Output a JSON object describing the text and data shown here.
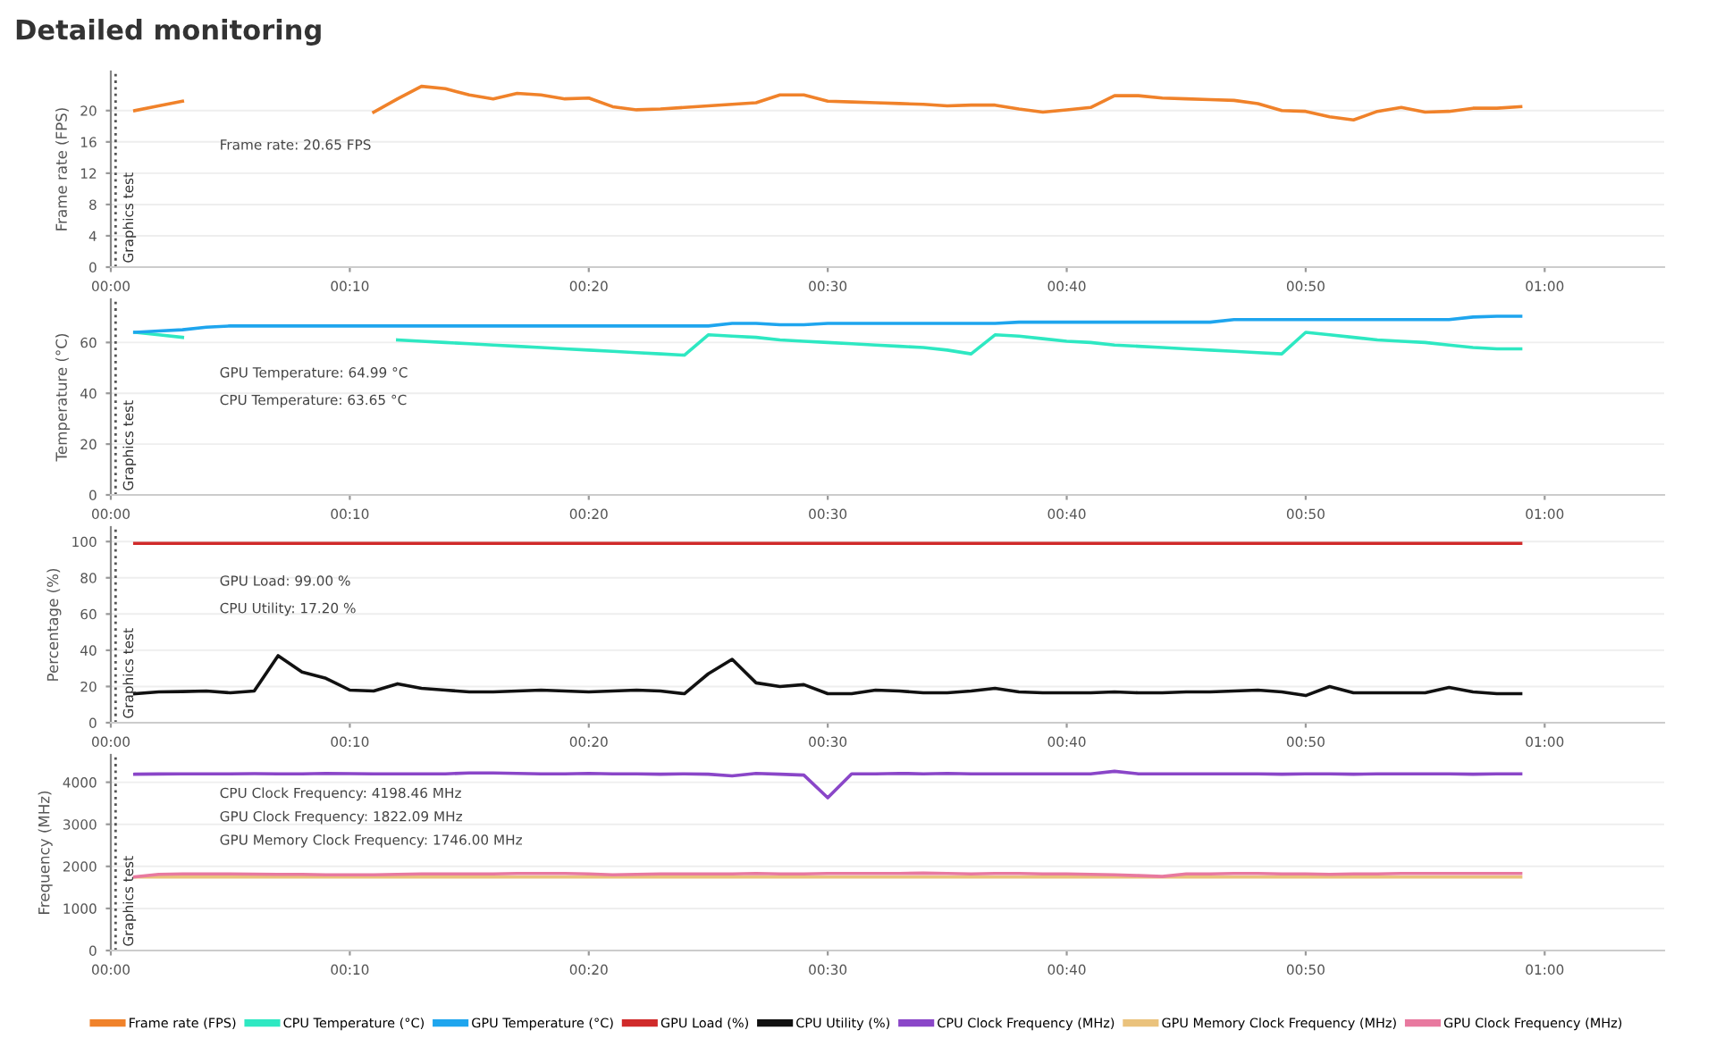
{
  "chart_data": [
    {
      "type": "line",
      "title": "Detailed monitoring",
      "ylabel": "Frame rate (FPS)",
      "x": [
        1,
        2,
        3,
        4,
        5,
        6,
        7,
        8,
        9,
        10,
        11,
        12,
        13,
        14,
        15,
        16,
        17,
        18,
        19,
        20,
        21,
        22,
        23,
        24,
        25,
        26,
        27,
        28,
        29,
        30,
        31,
        32,
        33,
        34,
        35,
        36,
        37,
        38,
        39,
        40,
        41,
        42,
        43,
        44,
        45,
        46,
        47,
        48,
        49,
        50,
        51,
        52,
        53,
        54,
        55,
        56,
        57,
        58,
        59
      ],
      "series": [
        {
          "name": "Frame rate (FPS)",
          "color": "#f0822a",
          "values": [
            20,
            20.6,
            21.2,
            null,
            null,
            null,
            null,
            null,
            null,
            null,
            19.8,
            21.5,
            23.1,
            22.8,
            22,
            21.5,
            22.2,
            22,
            21.5,
            21.6,
            20.5,
            20.1,
            20.2,
            20.4,
            20.6,
            20.8,
            21,
            22,
            22,
            21.2,
            21.1,
            21,
            20.9,
            20.8,
            20.6,
            20.7,
            20.7,
            20.2,
            19.8,
            20.1,
            20.4,
            21.9,
            21.9,
            21.6,
            21.5,
            21.4,
            21.3,
            20.9,
            20,
            19.9,
            19.2,
            18.8,
            19.9,
            20.4,
            19.8,
            19.9,
            20.3,
            20.3,
            20.5
          ]
        }
      ],
      "annotations": [
        "Frame rate: 20.65 FPS"
      ],
      "ref_lines": [
        {
          "axis": "x",
          "value": 0.2,
          "label": "Graphics test",
          "line_style": "dotted"
        }
      ],
      "xlim": [
        0,
        65
      ],
      "xticks": [
        {
          "value": 0,
          "label": "00:00"
        },
        {
          "value": 10,
          "label": "00:10"
        },
        {
          "value": 20,
          "label": "00:20"
        },
        {
          "value": 30,
          "label": "00:30"
        },
        {
          "value": 40,
          "label": "00:40"
        },
        {
          "value": 50,
          "label": "00:50"
        },
        {
          "value": 60,
          "label": "01:00"
        }
      ],
      "ylim": [
        0,
        25
      ],
      "yticks": [
        0,
        4,
        8,
        12,
        16,
        20
      ],
      "grid": "y",
      "legend": "bottom",
      "marker": "none",
      "line_style": "solid"
    },
    {
      "type": "line",
      "ylabel": "Temperature (°C)",
      "x": [
        1,
        2,
        3,
        4,
        5,
        6,
        7,
        8,
        9,
        10,
        11,
        12,
        13,
        14,
        15,
        16,
        17,
        18,
        19,
        20,
        21,
        22,
        23,
        24,
        25,
        26,
        27,
        28,
        29,
        30,
        31,
        32,
        33,
        34,
        35,
        36,
        37,
        38,
        39,
        40,
        41,
        42,
        43,
        44,
        45,
        46,
        47,
        48,
        49,
        50,
        51,
        52,
        53,
        54,
        55,
        56,
        57,
        58,
        59
      ],
      "series": [
        {
          "name": "CPU Temperature (°C)",
          "color": "#2ee8c2",
          "values": [
            64,
            63,
            62,
            null,
            null,
            null,
            null,
            null,
            null,
            null,
            null,
            61,
            60.5,
            60,
            59.5,
            59,
            58.5,
            58,
            57.5,
            57,
            56.5,
            56,
            55.5,
            55,
            63,
            62.5,
            62,
            61,
            60.5,
            60,
            59.5,
            59,
            58.5,
            58,
            57,
            55.5,
            63,
            62.5,
            61.5,
            60.5,
            60,
            59,
            58.5,
            58,
            57.5,
            57,
            56.5,
            56,
            55.5,
            64,
            63,
            62,
            61,
            60.5,
            60,
            59,
            58,
            57.5,
            57.5
          ]
        },
        {
          "name": "GPU Temperature (°C)",
          "color": "#1ea5ee",
          "values": [
            64,
            64.5,
            65,
            66,
            66.5,
            66.5,
            66.5,
            66.5,
            66.5,
            66.5,
            66.5,
            66.5,
            66.5,
            66.5,
            66.5,
            66.5,
            66.5,
            66.5,
            66.5,
            66.5,
            66.5,
            66.5,
            66.5,
            66.5,
            66.5,
            67.5,
            67.5,
            67,
            67,
            67.5,
            67.5,
            67.5,
            67.5,
            67.5,
            67.5,
            67.5,
            67.5,
            68,
            68,
            68,
            68,
            68,
            68,
            68,
            68,
            68,
            69,
            69,
            69,
            69,
            69,
            69,
            69,
            69,
            69,
            69,
            70,
            70.3,
            70.3
          ]
        }
      ],
      "annotations": [
        "GPU Temperature: 64.99 °C",
        "CPU Temperature: 63.65 °C"
      ],
      "ref_lines": [
        {
          "axis": "x",
          "value": 0.2,
          "label": "Graphics test",
          "line_style": "dotted"
        }
      ],
      "xlim": [
        0,
        65
      ],
      "xticks": [
        {
          "value": 0,
          "label": "00:00"
        },
        {
          "value": 10,
          "label": "00:10"
        },
        {
          "value": 20,
          "label": "00:20"
        },
        {
          "value": 30,
          "label": "00:30"
        },
        {
          "value": 40,
          "label": "00:40"
        },
        {
          "value": 50,
          "label": "00:50"
        },
        {
          "value": 60,
          "label": "01:00"
        }
      ],
      "ylim": [
        0,
        77
      ],
      "yticks": [
        0,
        20,
        40,
        60
      ],
      "grid": "y",
      "legend": "bottom",
      "marker": "none",
      "line_style": "solid"
    },
    {
      "type": "line",
      "ylabel": "Percentage (%)",
      "x": [
        1,
        2,
        3,
        4,
        5,
        6,
        7,
        8,
        9,
        10,
        11,
        12,
        13,
        14,
        15,
        16,
        17,
        18,
        19,
        20,
        21,
        22,
        23,
        24,
        25,
        26,
        27,
        28,
        29,
        30,
        31,
        32,
        33,
        34,
        35,
        36,
        37,
        38,
        39,
        40,
        41,
        42,
        43,
        44,
        45,
        46,
        47,
        48,
        49,
        50,
        51,
        52,
        53,
        54,
        55,
        56,
        57,
        58,
        59
      ],
      "series": [
        {
          "name": "GPU Load (%)",
          "color": "#d02a2a",
          "values": [
            99,
            99,
            99,
            99,
            99,
            99,
            99,
            99,
            99,
            99,
            99,
            99,
            99,
            99,
            99,
            99,
            99,
            99,
            99,
            99,
            99,
            99,
            99,
            99,
            99,
            99,
            99,
            99,
            99,
            99,
            99,
            99,
            99,
            99,
            99,
            99,
            99,
            99,
            99,
            99,
            99,
            99,
            99,
            99,
            99,
            99,
            99,
            99,
            99,
            99,
            99,
            99,
            99,
            99,
            99,
            99,
            99,
            99,
            99
          ]
        },
        {
          "name": "CPU Utility (%)",
          "color": "#111111",
          "values": [
            16,
            17,
            17.2,
            17.5,
            16.5,
            17.5,
            37,
            28,
            24.5,
            18,
            17.5,
            21.5,
            19,
            18,
            17,
            17,
            17.5,
            18,
            17.5,
            17,
            17.5,
            18,
            17.5,
            16,
            27,
            35,
            22,
            20,
            21,
            16,
            16,
            18,
            17.5,
            16.5,
            16.5,
            17.5,
            19,
            17,
            16.5,
            16.5,
            16.5,
            17,
            16.5,
            16.5,
            17,
            17,
            17.5,
            18,
            17,
            15,
            20,
            16.5,
            16.5,
            16.5,
            16.5,
            19.5,
            17,
            16,
            16
          ]
        }
      ],
      "annotations": [
        "GPU Load: 99.00 %",
        "CPU Utility: 17.20 %"
      ],
      "ref_lines": [
        {
          "axis": "x",
          "value": 0.2,
          "label": "Graphics test",
          "line_style": "dotted"
        }
      ],
      "xlim": [
        0,
        65
      ],
      "xticks": [
        {
          "value": 0,
          "label": "00:00"
        },
        {
          "value": 10,
          "label": "00:10"
        },
        {
          "value": 20,
          "label": "00:20"
        },
        {
          "value": 30,
          "label": "00:30"
        },
        {
          "value": 40,
          "label": "00:40"
        },
        {
          "value": 50,
          "label": "00:50"
        },
        {
          "value": 60,
          "label": "01:00"
        }
      ],
      "ylim": [
        0,
        108
      ],
      "yticks": [
        0,
        20,
        40,
        60,
        80,
        100
      ],
      "grid": "y",
      "legend": "bottom",
      "marker": "none",
      "line_style": "solid"
    },
    {
      "type": "line",
      "ylabel": "Frequency (MHz)",
      "x": [
        1,
        2,
        3,
        4,
        5,
        6,
        7,
        8,
        9,
        10,
        11,
        12,
        13,
        14,
        15,
        16,
        17,
        18,
        19,
        20,
        21,
        22,
        23,
        24,
        25,
        26,
        27,
        28,
        29,
        30,
        31,
        32,
        33,
        34,
        35,
        36,
        37,
        38,
        39,
        40,
        41,
        42,
        43,
        44,
        45,
        46,
        47,
        48,
        49,
        50,
        51,
        52,
        53,
        54,
        55,
        56,
        57,
        58,
        59
      ],
      "series": [
        {
          "name": "CPU Clock Frequency (MHz)",
          "color": "#8a46c8",
          "values": [
            4190,
            4195,
            4198,
            4200,
            4200,
            4205,
            4200,
            4200,
            4210,
            4205,
            4200,
            4200,
            4200,
            4200,
            4220,
            4220,
            4210,
            4200,
            4200,
            4210,
            4200,
            4200,
            4190,
            4200,
            4190,
            4150,
            4210,
            4190,
            4170,
            3630,
            4200,
            4200,
            4210,
            4200,
            4210,
            4200,
            4200,
            4200,
            4200,
            4200,
            4200,
            4260,
            4200,
            4200,
            4200,
            4200,
            4200,
            4200,
            4190,
            4200,
            4200,
            4190,
            4200,
            4200,
            4200,
            4200,
            4190,
            4200,
            4200
          ]
        },
        {
          "name": "GPU Memory Clock Frequency (MHz)",
          "color": "#eac27c",
          "values": [
            1746,
            1746,
            1746,
            1746,
            1746,
            1746,
            1746,
            1746,
            1746,
            1746,
            1746,
            1746,
            1746,
            1746,
            1746,
            1746,
            1746,
            1746,
            1746,
            1746,
            1746,
            1746,
            1746,
            1746,
            1746,
            1746,
            1746,
            1746,
            1746,
            1746,
            1746,
            1746,
            1746,
            1746,
            1746,
            1746,
            1746,
            1746,
            1746,
            1746,
            1746,
            1746,
            1746,
            1746,
            1746,
            1746,
            1746,
            1746,
            1746,
            1746,
            1746,
            1746,
            1746,
            1746,
            1746,
            1746,
            1746,
            1746,
            1746
          ]
        },
        {
          "name": "GPU Clock Frequency (MHz)",
          "color": "#e8799f",
          "values": [
            1750,
            1810,
            1822,
            1820,
            1820,
            1815,
            1810,
            1810,
            1800,
            1800,
            1800,
            1810,
            1820,
            1820,
            1820,
            1820,
            1830,
            1830,
            1830,
            1820,
            1800,
            1810,
            1820,
            1820,
            1820,
            1820,
            1830,
            1820,
            1820,
            1830,
            1830,
            1830,
            1830,
            1840,
            1830,
            1820,
            1830,
            1830,
            1820,
            1820,
            1810,
            1800,
            1780,
            1760,
            1820,
            1820,
            1830,
            1830,
            1820,
            1820,
            1810,
            1820,
            1820,
            1830,
            1830,
            1830,
            1830,
            1830,
            1830
          ]
        }
      ],
      "annotations": [
        "CPU Clock Frequency: 4198.46 MHz",
        "GPU Clock Frequency: 1822.09 MHz",
        "GPU Memory Clock Frequency: 1746.00 MHz"
      ],
      "ref_lines": [
        {
          "axis": "x",
          "value": 0.2,
          "label": "Graphics test",
          "line_style": "dotted"
        }
      ],
      "xlim": [
        0,
        65
      ],
      "xticks": [
        {
          "value": 0,
          "label": "00:00"
        },
        {
          "value": 10,
          "label": "00:10"
        },
        {
          "value": 20,
          "label": "00:20"
        },
        {
          "value": 30,
          "label": "00:30"
        },
        {
          "value": 40,
          "label": "00:40"
        },
        {
          "value": 50,
          "label": "00:50"
        },
        {
          "value": 60,
          "label": "01:00"
        }
      ],
      "ylim": [
        0,
        4650
      ],
      "yticks": [
        0,
        1000,
        2000,
        3000,
        4000
      ],
      "grid": "y",
      "legend": "bottom",
      "marker": "none",
      "line_style": "solid"
    }
  ]
}
